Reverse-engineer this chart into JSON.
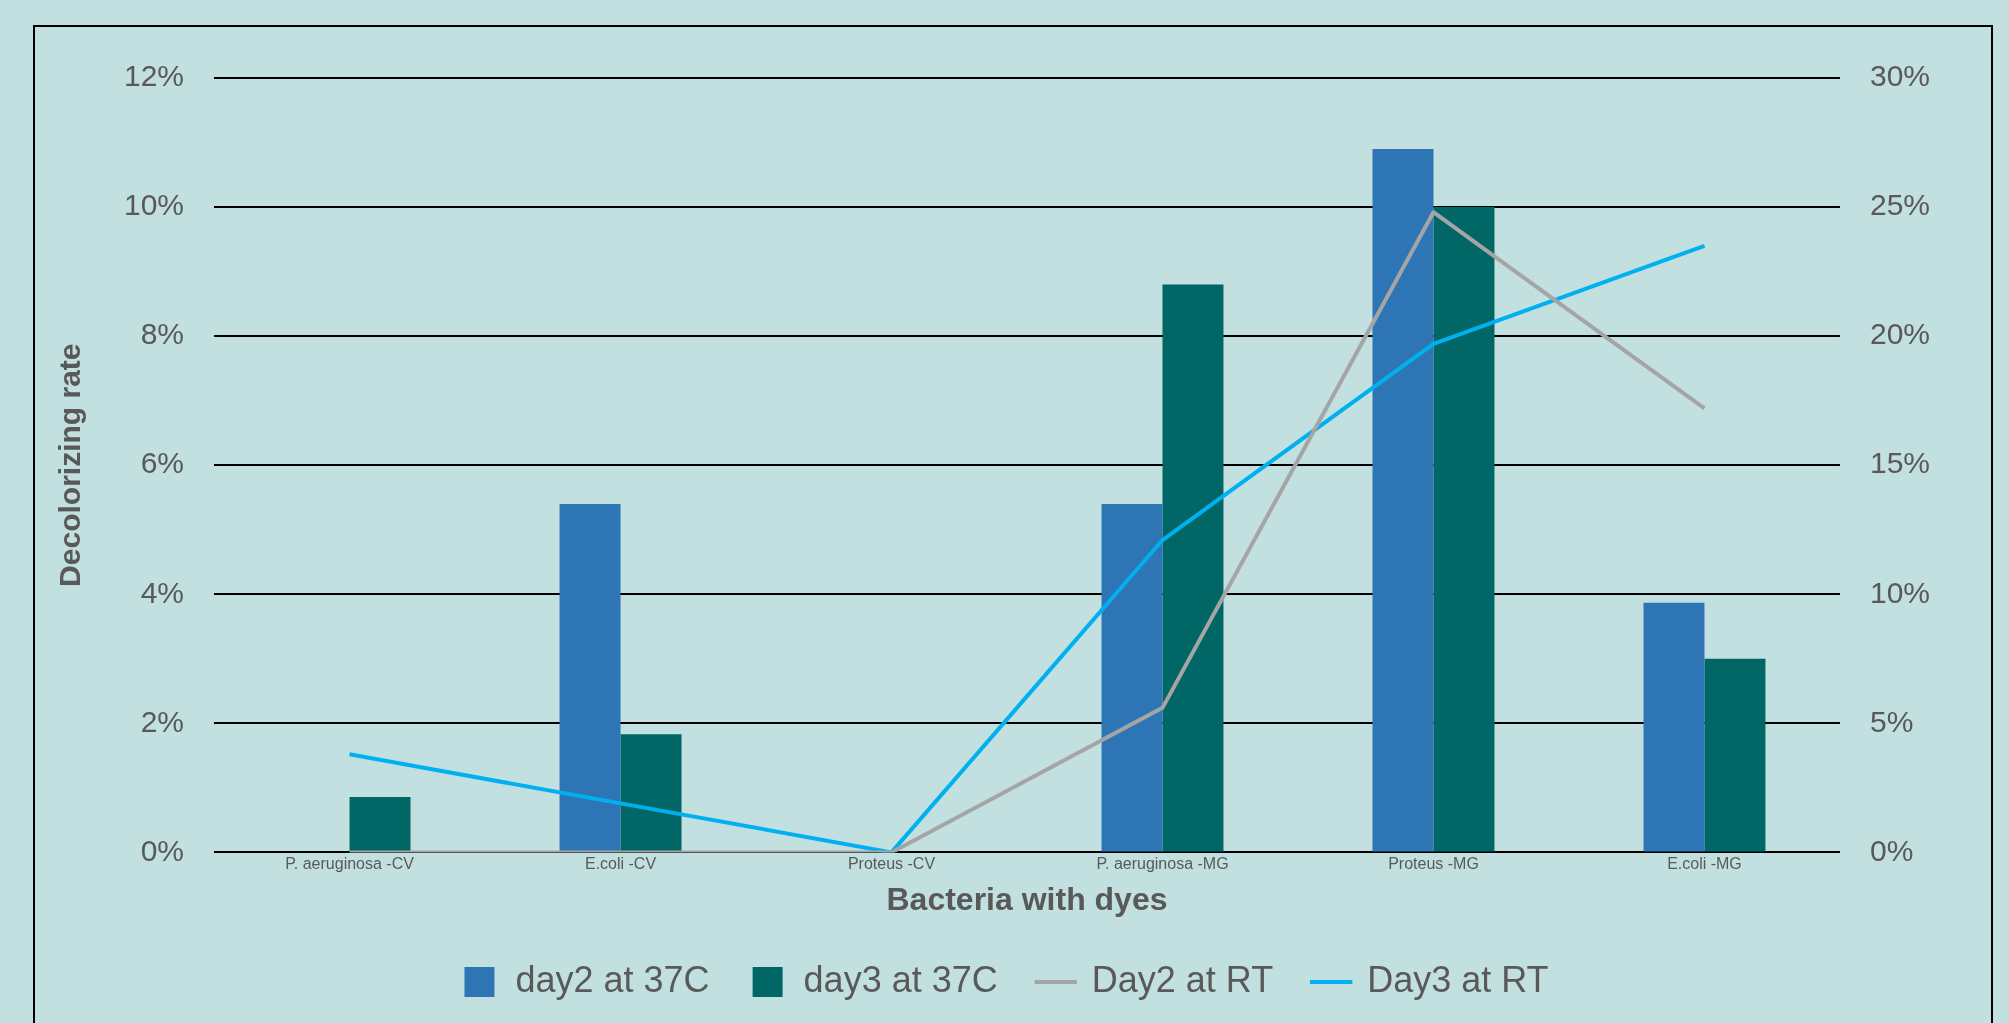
{
  "chart_data": {
    "type": "bar",
    "xlabel": "Bacteria with dyes",
    "ylabel": "Decolorizing rate",
    "categories": [
      "P. aeruginosa -CV",
      "E.coli -CV",
      "Proteus -CV",
      "P. aeruginosa -MG",
      "Proteus -MG",
      "E.coli -MG"
    ],
    "series": [
      {
        "name": "day2 at 37C",
        "color": "#2e75b6",
        "values": [
          0,
          5.4,
          0,
          5.4,
          10.9,
          3.87
        ]
      },
      {
        "name": "day3 at 37C",
        "color": "#006666",
        "values": [
          0.86,
          1.83,
          0,
          8.8,
          10.0,
          3.0
        ]
      },
      {
        "name": "Day2 at RT",
        "type": "line",
        "axis": "y2",
        "color": "#a5a5a5",
        "values": [
          0,
          0,
          0,
          5.6,
          24.8,
          17.2
        ]
      },
      {
        "name": "Day3 at RT",
        "type": "line",
        "axis": "y2",
        "color": "#00b0f0",
        "values": [
          3.8,
          1.9,
          0,
          12.1,
          19.7,
          23.5
        ]
      }
    ],
    "ylim": [
      0,
      12
    ],
    "yticks": [
      {
        "value": 0,
        "label": "0%"
      },
      {
        "value": 2,
        "label": "2%"
      },
      {
        "value": 4,
        "label": "4%"
      },
      {
        "value": 6,
        "label": "6%"
      },
      {
        "value": 8,
        "label": "8%"
      },
      {
        "value": 10,
        "label": "10%"
      },
      {
        "value": 12,
        "label": "12%"
      }
    ],
    "y2lim": [
      0,
      30
    ],
    "y2ticks": [
      {
        "value": 0,
        "label": "0%"
      },
      {
        "value": 5,
        "label": "5%"
      },
      {
        "value": 10,
        "label": "10%"
      },
      {
        "value": 15,
        "label": "15%"
      },
      {
        "value": 20,
        "label": "20%"
      },
      {
        "value": 25,
        "label": "25%"
      },
      {
        "value": 30,
        "label": "30%"
      }
    ],
    "grid": "y",
    "legend": "bottom",
    "marker": "none",
    "line_style": "solid"
  }
}
